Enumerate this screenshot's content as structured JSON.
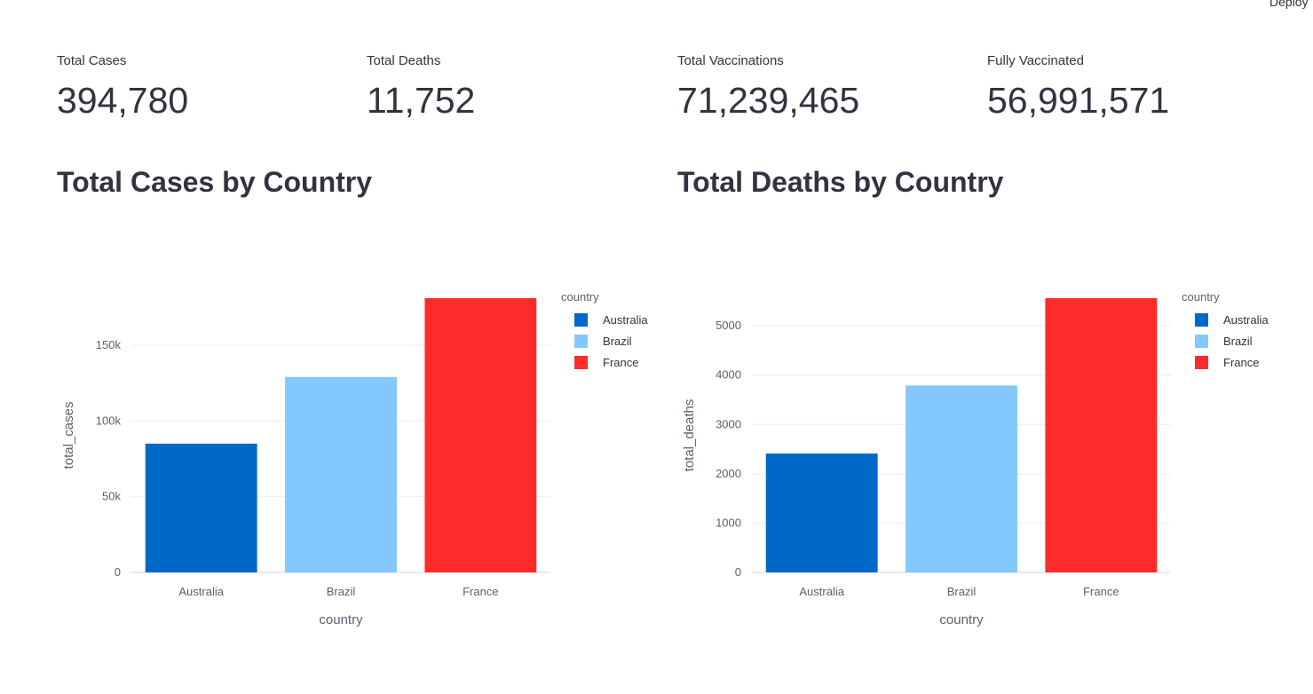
{
  "header": {
    "deploy_label": "Deploy"
  },
  "metrics": [
    {
      "label": "Total Cases",
      "value": "394,780"
    },
    {
      "label": "Total Deaths",
      "value": "11,752"
    },
    {
      "label": "Total Vaccinations",
      "value": "71,239,465"
    },
    {
      "label": "Fully Vaccinated",
      "value": "56,991,571"
    }
  ],
  "charts": {
    "cases": {
      "title": "Total Cases by Country"
    },
    "deaths": {
      "title": "Total Deaths by Country"
    }
  },
  "chart_data": [
    {
      "type": "bar",
      "categories": [
        "Australia",
        "Brazil",
        "France"
      ],
      "values": [
        85000,
        129000,
        181000
      ],
      "colors": [
        "#0068c9",
        "#83c9ff",
        "#ff2b2b"
      ],
      "xlabel": "country",
      "ylabel": "total_cases",
      "ylim": [
        0,
        181000
      ],
      "yticks": [
        0,
        50000,
        100000,
        150000
      ],
      "ytick_labels": [
        "0",
        "50k",
        "100k",
        "150k"
      ],
      "grid": true,
      "legend": {
        "title": "country",
        "entries": [
          "Australia",
          "Brazil",
          "France"
        ],
        "placement": "top-right"
      }
    },
    {
      "type": "bar",
      "categories": [
        "Australia",
        "Brazil",
        "France"
      ],
      "values": [
        2410,
        3790,
        5560
      ],
      "colors": [
        "#0068c9",
        "#83c9ff",
        "#ff2b2b"
      ],
      "xlabel": "country",
      "ylabel": "total_deaths",
      "ylim": [
        0,
        5560
      ],
      "yticks": [
        0,
        1000,
        2000,
        3000,
        4000,
        5000
      ],
      "ytick_labels": [
        "0",
        "1000",
        "2000",
        "3000",
        "4000",
        "5000"
      ],
      "grid": true,
      "legend": {
        "title": "country",
        "entries": [
          "Australia",
          "Brazil",
          "France"
        ],
        "placement": "top-right"
      }
    }
  ]
}
